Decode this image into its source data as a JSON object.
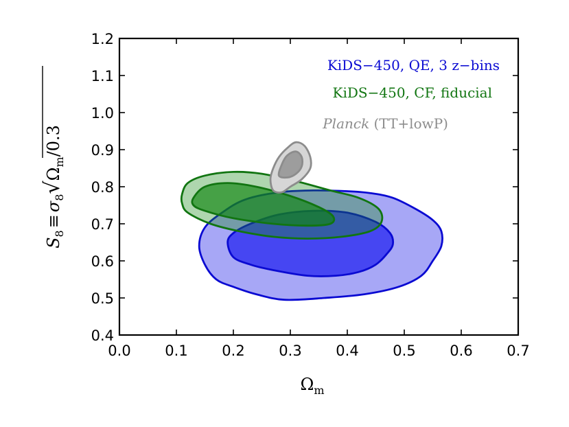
{
  "chart_data": {
    "type": "contour",
    "title": "",
    "xlabel": "Ω",
    "xlabel_sub": "m",
    "ylabel": {
      "s_symbol": "S",
      "s_sub": "8",
      "equiv": "≡",
      "sigma_symbol": "σ",
      "sigma_sub": "8",
      "radical": "√",
      "omega_symbol": "Ω",
      "omega_sub": "m",
      "denominator": "/0.3"
    },
    "xlim": [
      0.0,
      0.7
    ],
    "ylim": [
      0.4,
      1.2
    ],
    "xticks": [
      "0.0",
      "0.1",
      "0.2",
      "0.3",
      "0.4",
      "0.5",
      "0.6",
      "0.7"
    ],
    "yticks": [
      "0.4",
      "0.5",
      "0.6",
      "0.7",
      "0.8",
      "0.9",
      "1.0",
      "1.1",
      "1.2"
    ],
    "grid": false,
    "legend_position": "top-right",
    "series": [
      {
        "name": "KiDS-450, QE, 3 z-bins",
        "label_parts": [
          "KiDS−450, QE, 3 z−bins"
        ],
        "color": "#0a0ad2",
        "fill_outer": "#a7a7f6",
        "fill_inner": "#4646f2",
        "contours": {
          "outer_95": [
            [
              0.14,
              0.64
            ],
            [
              0.15,
              0.59
            ],
            [
              0.17,
              0.55
            ],
            [
              0.2,
              0.53
            ],
            [
              0.24,
              0.51
            ],
            [
              0.29,
              0.495
            ],
            [
              0.36,
              0.5
            ],
            [
              0.43,
              0.51
            ],
            [
              0.49,
              0.53
            ],
            [
              0.53,
              0.56
            ],
            [
              0.55,
              0.6
            ],
            [
              0.565,
              0.64
            ],
            [
              0.565,
              0.68
            ],
            [
              0.55,
              0.71
            ],
            [
              0.52,
              0.74
            ],
            [
              0.48,
              0.77
            ],
            [
              0.44,
              0.783
            ],
            [
              0.4,
              0.788
            ],
            [
              0.34,
              0.79
            ],
            [
              0.28,
              0.785
            ],
            [
              0.22,
              0.765
            ],
            [
              0.18,
              0.73
            ],
            [
              0.15,
              0.69
            ]
          ],
          "inner_68": [
            [
              0.19,
              0.65
            ],
            [
              0.2,
              0.61
            ],
            [
              0.23,
              0.59
            ],
            [
              0.27,
              0.575
            ],
            [
              0.33,
              0.56
            ],
            [
              0.38,
              0.56
            ],
            [
              0.42,
              0.57
            ],
            [
              0.45,
              0.59
            ],
            [
              0.47,
              0.62
            ],
            [
              0.48,
              0.645
            ],
            [
              0.475,
              0.675
            ],
            [
              0.45,
              0.705
            ],
            [
              0.4,
              0.73
            ],
            [
              0.34,
              0.735
            ],
            [
              0.28,
              0.725
            ],
            [
              0.23,
              0.7
            ],
            [
              0.2,
              0.675
            ]
          ]
        }
      },
      {
        "name": "KiDS-450, CF, fiducial",
        "label_parts": [
          "KiDS−450, CF, fiducial"
        ],
        "color": "#117511",
        "fill_outer": "rgba(17,134,17,0.34)",
        "fill_inner": "rgba(17,134,17,0.66)",
        "contours": {
          "outer_95": [
            [
              0.11,
              0.78
            ],
            [
              0.12,
              0.81
            ],
            [
              0.15,
              0.83
            ],
            [
              0.2,
              0.84
            ],
            [
              0.25,
              0.835
            ],
            [
              0.31,
              0.815
            ],
            [
              0.37,
              0.79
            ],
            [
              0.42,
              0.77
            ],
            [
              0.455,
              0.74
            ],
            [
              0.46,
              0.705
            ],
            [
              0.44,
              0.68
            ],
            [
              0.39,
              0.665
            ],
            [
              0.33,
              0.66
            ],
            [
              0.27,
              0.665
            ],
            [
              0.21,
              0.68
            ],
            [
              0.16,
              0.7
            ],
            [
              0.12,
              0.73
            ],
            [
              0.11,
              0.755
            ]
          ],
          "inner_68": [
            [
              0.13,
              0.77
            ],
            [
              0.15,
              0.8
            ],
            [
              0.19,
              0.81
            ],
            [
              0.24,
              0.8
            ],
            [
              0.3,
              0.775
            ],
            [
              0.35,
              0.745
            ],
            [
              0.375,
              0.72
            ],
            [
              0.37,
              0.7
            ],
            [
              0.33,
              0.695
            ],
            [
              0.27,
              0.7
            ],
            [
              0.2,
              0.715
            ],
            [
              0.15,
              0.735
            ],
            [
              0.13,
              0.75
            ]
          ]
        }
      },
      {
        "name": "Planck (TT+lowP)",
        "label_parts": [
          "Planck",
          " (TT+lowP)"
        ],
        "color": "#8c8c8c",
        "fill_outer": "#d6d6d6",
        "fill_inner": "#9d9d9d",
        "contours": {
          "outer_95": [
            [
              0.27,
              0.79
            ],
            [
              0.265,
              0.82
            ],
            [
              0.27,
              0.85
            ],
            [
              0.28,
              0.88
            ],
            [
              0.295,
              0.905
            ],
            [
              0.31,
              0.92
            ],
            [
              0.325,
              0.91
            ],
            [
              0.335,
              0.88
            ],
            [
              0.335,
              0.85
            ],
            [
              0.32,
              0.82
            ],
            [
              0.3,
              0.8
            ],
            [
              0.285,
              0.785
            ]
          ],
          "inner_68": [
            [
              0.28,
              0.83
            ],
            [
              0.285,
              0.86
            ],
            [
              0.295,
              0.885
            ],
            [
              0.31,
              0.895
            ],
            [
              0.32,
              0.88
            ],
            [
              0.32,
              0.855
            ],
            [
              0.31,
              0.835
            ],
            [
              0.295,
              0.825
            ]
          ]
        }
      }
    ]
  }
}
